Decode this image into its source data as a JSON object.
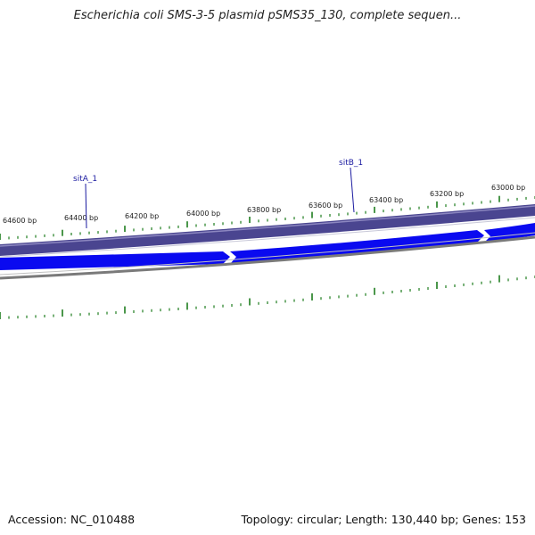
{
  "title": "Escherichia coli SMS-3-5 plasmid pSMS35_130, complete sequen...",
  "footer": {
    "accession": "Accession: NC_010488",
    "stats": "Topology: circular; Length: 130,440 bp; Genes: 153"
  },
  "colors": {
    "outer_band": "#4a4590",
    "gene_arrow": "#0a0af0",
    "backbone": "#808080",
    "ticks": "#1e7d1e",
    "gene_label": "#1a1aa0"
  },
  "scale_labels": [
    "64600 bp",
    "64400 bp",
    "64200 bp",
    "64000 bp",
    "63800 bp",
    "63600 bp",
    "63400 bp",
    "63200 bp",
    "63000 bp"
  ],
  "genes": [
    {
      "name": "sitA_1",
      "position_bp": 64365
    },
    {
      "name": "sitB_1",
      "position_bp": 63550
    }
  ]
}
